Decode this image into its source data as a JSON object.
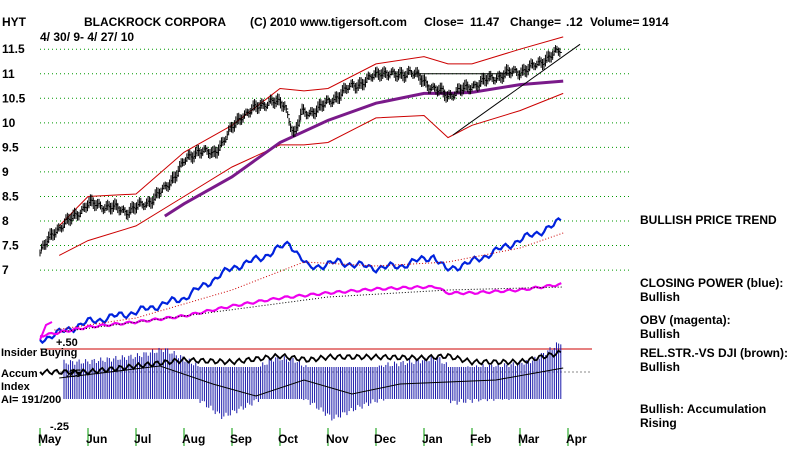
{
  "header": {
    "symbol": "HYT",
    "company": "BLACKROCK CORPORA",
    "copyright": "(C) 2010 www.tigersoft.com",
    "close_label": "Close=",
    "close_value": "11.47",
    "change_label": "Change=",
    "change_value": ".12",
    "volume_label": "Volume=",
    "volume_value": "1914",
    "date_range": "4/ 30/ 9- 4/ 27/ 10"
  },
  "side_labels": [
    "BULLISH PRICE TREND",
    "CLOSING POWER (blue):\nBullish",
    "OBV (magenta):\nBullish",
    "REL.STR.-VS DJI (brown):\nBullish",
    "Bullish: Accumulation Rising"
  ],
  "indicator_labels": {
    "insider": "Insider Buying",
    "accum": "Accum",
    "index": "Index",
    "ai": "AI= 191/200",
    "plus50": "+.50",
    "plus25": ".25",
    "minus25": "-.25"
  },
  "colors": {
    "price": "#000000",
    "bands": "#cc0000",
    "ma": "#7a1a8a",
    "closing_power": "#0022dd",
    "obv": "#ee00ee",
    "accum_bars": "#1a1aaa",
    "grid": "#009900",
    "rel_str": "#000000"
  },
  "chart_data": {
    "type": "line",
    "title": "BLACKROCK CORPORA",
    "x_tick_labels": [
      "May",
      "Jun",
      "Jul",
      "Aug",
      "Sep",
      "Oct",
      "Nov",
      "Dec",
      "Jan",
      "Feb",
      "Mar",
      "Apr"
    ],
    "y_tick_labels": [
      "11.5",
      "11",
      "10.5",
      "10",
      "9.5",
      "9",
      "8.5",
      "8",
      "7.5",
      "7"
    ],
    "ylim": [
      6.9,
      11.7
    ],
    "grid": true,
    "series": [
      {
        "role": "price",
        "x": [
          0,
          0.3,
          0.6,
          1.0,
          1.4,
          1.8,
          2.2,
          2.6,
          3.0,
          3.3,
          3.6,
          3.9,
          4.2,
          4.5,
          4.8,
          5.1,
          5.3,
          5.45,
          5.6,
          5.9,
          6.2,
          6.5,
          6.8,
          7.1,
          7.4,
          7.7,
          8.0,
          8.2,
          8.5,
          8.7,
          8.9,
          9.1,
          9.4,
          9.7,
          10.0,
          10.3,
          10.6,
          10.85
        ],
        "values": [
          7.35,
          7.8,
          8.0,
          8.35,
          8.3,
          8.2,
          8.35,
          8.65,
          9.2,
          9.45,
          9.35,
          9.75,
          10.15,
          10.3,
          10.45,
          10.35,
          9.75,
          10.2,
          10.2,
          10.35,
          10.55,
          10.75,
          10.85,
          11.05,
          10.95,
          11.05,
          10.85,
          10.7,
          10.55,
          10.65,
          10.7,
          10.8,
          10.9,
          11.0,
          11.05,
          11.15,
          11.35,
          11.47
        ]
      },
      {
        "role": "upper_band",
        "x": [
          0.4,
          1,
          2,
          3,
          4,
          5,
          5.5,
          6,
          7,
          8,
          8.5,
          9,
          10,
          10.9
        ],
        "values": [
          7.9,
          8.5,
          8.55,
          9.4,
          9.95,
          10.7,
          10.65,
          10.7,
          11.2,
          11.35,
          11.2,
          11.2,
          11.5,
          11.75
        ]
      },
      {
        "role": "lower_band",
        "x": [
          0.4,
          1,
          2,
          3,
          4,
          5,
          5.5,
          6,
          7,
          8,
          8.5,
          9,
          10,
          10.9
        ],
        "values": [
          7.3,
          7.6,
          7.9,
          8.5,
          9.1,
          9.55,
          9.55,
          9.6,
          10.1,
          10.15,
          9.7,
          9.95,
          10.25,
          10.6
        ]
      },
      {
        "role": "moving_average",
        "x": [
          2.6,
          3,
          4,
          5,
          6,
          7,
          8,
          8.5,
          9,
          10,
          10.9
        ],
        "values": [
          8.1,
          8.35,
          8.9,
          9.6,
          10.05,
          10.4,
          10.6,
          10.6,
          10.62,
          10.78,
          10.85
        ]
      },
      {
        "role": "resistance_line",
        "x": [
          7.8,
          9.8
        ],
        "values": [
          11.0,
          11.0
        ]
      },
      {
        "role": "trendline",
        "x": [
          8.6,
          11.25
        ],
        "values": [
          9.75,
          11.6
        ]
      }
    ]
  }
}
